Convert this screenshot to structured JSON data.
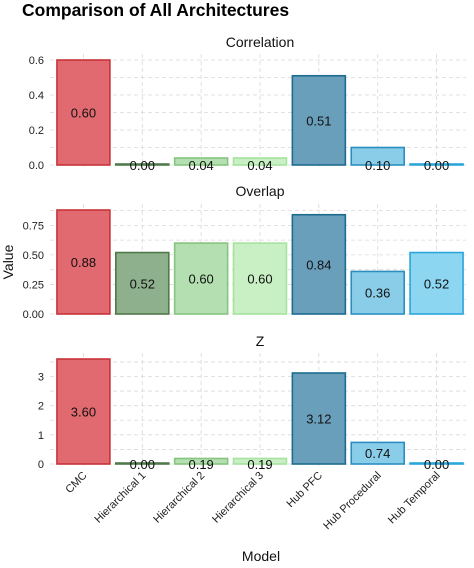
{
  "chart_data": {
    "type": "bar",
    "title": "Comparison of All Architectures",
    "xlabel": "Model",
    "ylabel": "Value",
    "categories": [
      "CMC",
      "Hierarchical 1",
      "Hierarchical 2",
      "Hierarchical 3",
      "Hub PFC",
      "Hub Procedural",
      "Hub Temporal"
    ],
    "colors": {
      "fills": [
        "#e06a70",
        "#8fb08c",
        "#b4dfb0",
        "#c8f0c4",
        "#6a9fbb",
        "#8acde8",
        "#8dd6f2"
      ],
      "strokes": [
        "#c8343a",
        "#4f7a4c",
        "#86c47f",
        "#a6e39f",
        "#1d6c90",
        "#2a8fc0",
        "#29a6da"
      ]
    },
    "facets": [
      {
        "name": "Correlation",
        "values": [
          0.6,
          0.0,
          0.04,
          0.04,
          0.51,
          0.1,
          0.0
        ],
        "labels": [
          "0.60",
          "0.00",
          "0.04",
          "0.04",
          "0.51",
          "0.10",
          "0.00"
        ],
        "ylim": [
          0,
          0.6
        ],
        "ticks": [
          0.0,
          0.2,
          0.4,
          0.6
        ],
        "tick_labels": [
          "0.0",
          "0.2",
          "0.4",
          "0.6"
        ]
      },
      {
        "name": "Overlap",
        "values": [
          0.88,
          0.52,
          0.6,
          0.6,
          0.84,
          0.36,
          0.52
        ],
        "labels": [
          "0.88",
          "0.52",
          "0.60",
          "0.60",
          "0.84",
          "0.36",
          "0.52"
        ],
        "ylim": [
          0,
          0.88
        ],
        "ticks": [
          0.0,
          0.25,
          0.5,
          0.75
        ],
        "tick_labels": [
          "0.00",
          "0.25",
          "0.50",
          "0.75"
        ]
      },
      {
        "name": "Z",
        "values": [
          3.6,
          0.0,
          0.19,
          0.19,
          3.12,
          0.74,
          0.0
        ],
        "labels": [
          "3.60",
          "0.00",
          "0.19",
          "0.19",
          "3.12",
          "0.74",
          "0.00"
        ],
        "ylim": [
          0,
          3.6
        ],
        "ticks": [
          0,
          1,
          2,
          3
        ],
        "tick_labels": [
          "0",
          "1",
          "2",
          "3"
        ]
      }
    ],
    "grid": true,
    "legend": "none"
  }
}
